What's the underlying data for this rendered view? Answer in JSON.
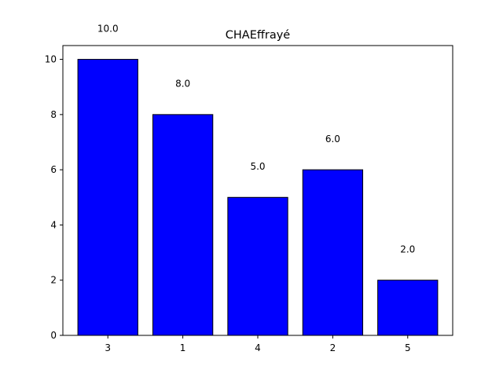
{
  "chart_data": {
    "type": "bar",
    "title": "CHAEffrayé",
    "xlabel": "",
    "ylabel": "",
    "categories": [
      "3",
      "1",
      "4",
      "2",
      "5"
    ],
    "values": [
      10.0,
      8.0,
      5.0,
      6.0,
      2.0
    ],
    "data_labels": [
      "10.0",
      "8.0",
      "5.0",
      "6.0",
      "2.0"
    ],
    "ylim": [
      0,
      10.5
    ],
    "yticks": [
      0,
      2,
      4,
      6,
      8,
      10
    ],
    "ytick_labels": [
      "0",
      "2",
      "4",
      "6",
      "8",
      "10"
    ],
    "grid": false,
    "legend": "none",
    "colors": {
      "bar_fill": "#0000ff",
      "bar_edge": "#000000",
      "axis": "#000000",
      "background": "#ffffff"
    }
  }
}
